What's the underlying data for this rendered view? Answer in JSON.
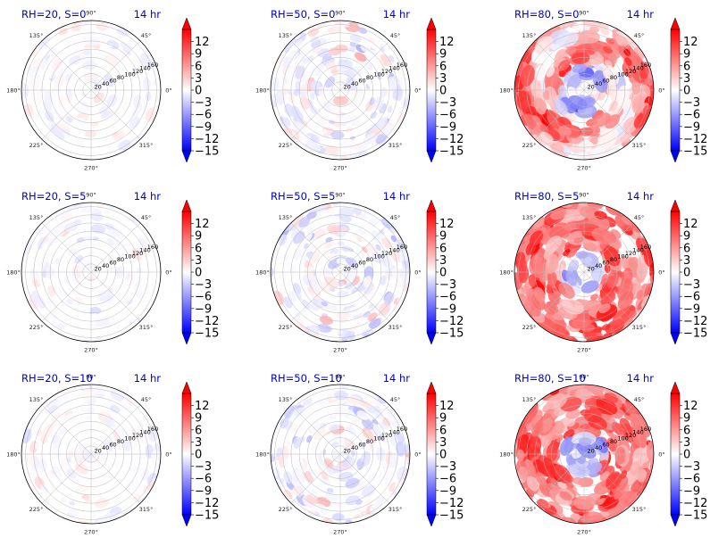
{
  "chart_data": {
    "type": "heatmap",
    "projection": "polar",
    "grid": true,
    "time_label": "14 hr",
    "angle_ticks": [
      "0°",
      "45°",
      "90°",
      "135°",
      "180°",
      "225°",
      "270°",
      "315°"
    ],
    "radial_ticks": [
      "20",
      "40",
      "60",
      "80",
      "100",
      "120",
      "140",
      "160"
    ],
    "rlim": [
      0,
      170
    ],
    "colormap": {
      "name": "bwr",
      "low_color": "#0000ff",
      "mid_color": "#ffffff",
      "high_color": "#ff0000",
      "range": [
        -15,
        15
      ],
      "ticks": [
        "12",
        "9",
        "6",
        "3",
        "0",
        "−3",
        "−6",
        "−9",
        "−12",
        "−15"
      ],
      "extend": "both"
    },
    "panels": [
      {
        "title": "RH=20, S=0",
        "row": 0,
        "col": 0,
        "amplitude": 0.15,
        "pattern": "weak-speckle"
      },
      {
        "title": "RH=50, S=0",
        "row": 0,
        "col": 1,
        "amplitude": 0.3,
        "pattern": "speckle"
      },
      {
        "title": "RH=80, S=0",
        "row": 0,
        "col": 2,
        "amplitude": 0.85,
        "pattern": "spiral"
      },
      {
        "title": "RH=20, S=5",
        "row": 1,
        "col": 0,
        "amplitude": 0.15,
        "pattern": "weak-speckle"
      },
      {
        "title": "RH=50, S=5",
        "row": 1,
        "col": 1,
        "amplitude": 0.3,
        "pattern": "speckle"
      },
      {
        "title": "RH=80, S=5",
        "row": 1,
        "col": 2,
        "amplitude": 0.9,
        "pattern": "ring"
      },
      {
        "title": "RH=20, S=10",
        "row": 2,
        "col": 0,
        "amplitude": 0.15,
        "pattern": "weak-speckle"
      },
      {
        "title": "RH=50, S=10",
        "row": 2,
        "col": 1,
        "amplitude": 0.28,
        "pattern": "speckle"
      },
      {
        "title": "RH=80, S=10",
        "row": 2,
        "col": 2,
        "amplitude": 0.85,
        "pattern": "ring"
      }
    ]
  }
}
